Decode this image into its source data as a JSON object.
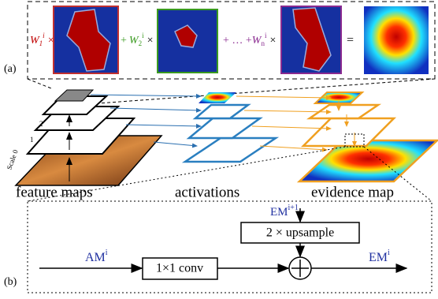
{
  "panel_a": {
    "label": "(a)",
    "terms": [
      {
        "symbol": "W",
        "subscript": "1",
        "superscript": "i",
        "operator": "×"
      },
      {
        "symbol": "W",
        "subscript": "2",
        "superscript": "i",
        "operator": "×"
      },
      {
        "symbol": "W",
        "subscript": "n",
        "superscript": "i",
        "operator": "×"
      }
    ],
    "connectors": [
      "+",
      "+ … +"
    ],
    "equals": "="
  },
  "pyramid": {
    "scale_labels": [
      "Scale 0",
      "1",
      "2"
    ],
    "captions": [
      "feature maps",
      "activations",
      "evidence map"
    ]
  },
  "panel_b": {
    "label": "(b)",
    "am": {
      "base": "AM",
      "superscript": "i"
    },
    "em_next": {
      "base": "EM",
      "superscript": "i+1"
    },
    "em_out": {
      "base": "EM",
      "superscript": "i"
    },
    "upsample": "2 × upsample",
    "conv": "1×1 conv"
  }
}
